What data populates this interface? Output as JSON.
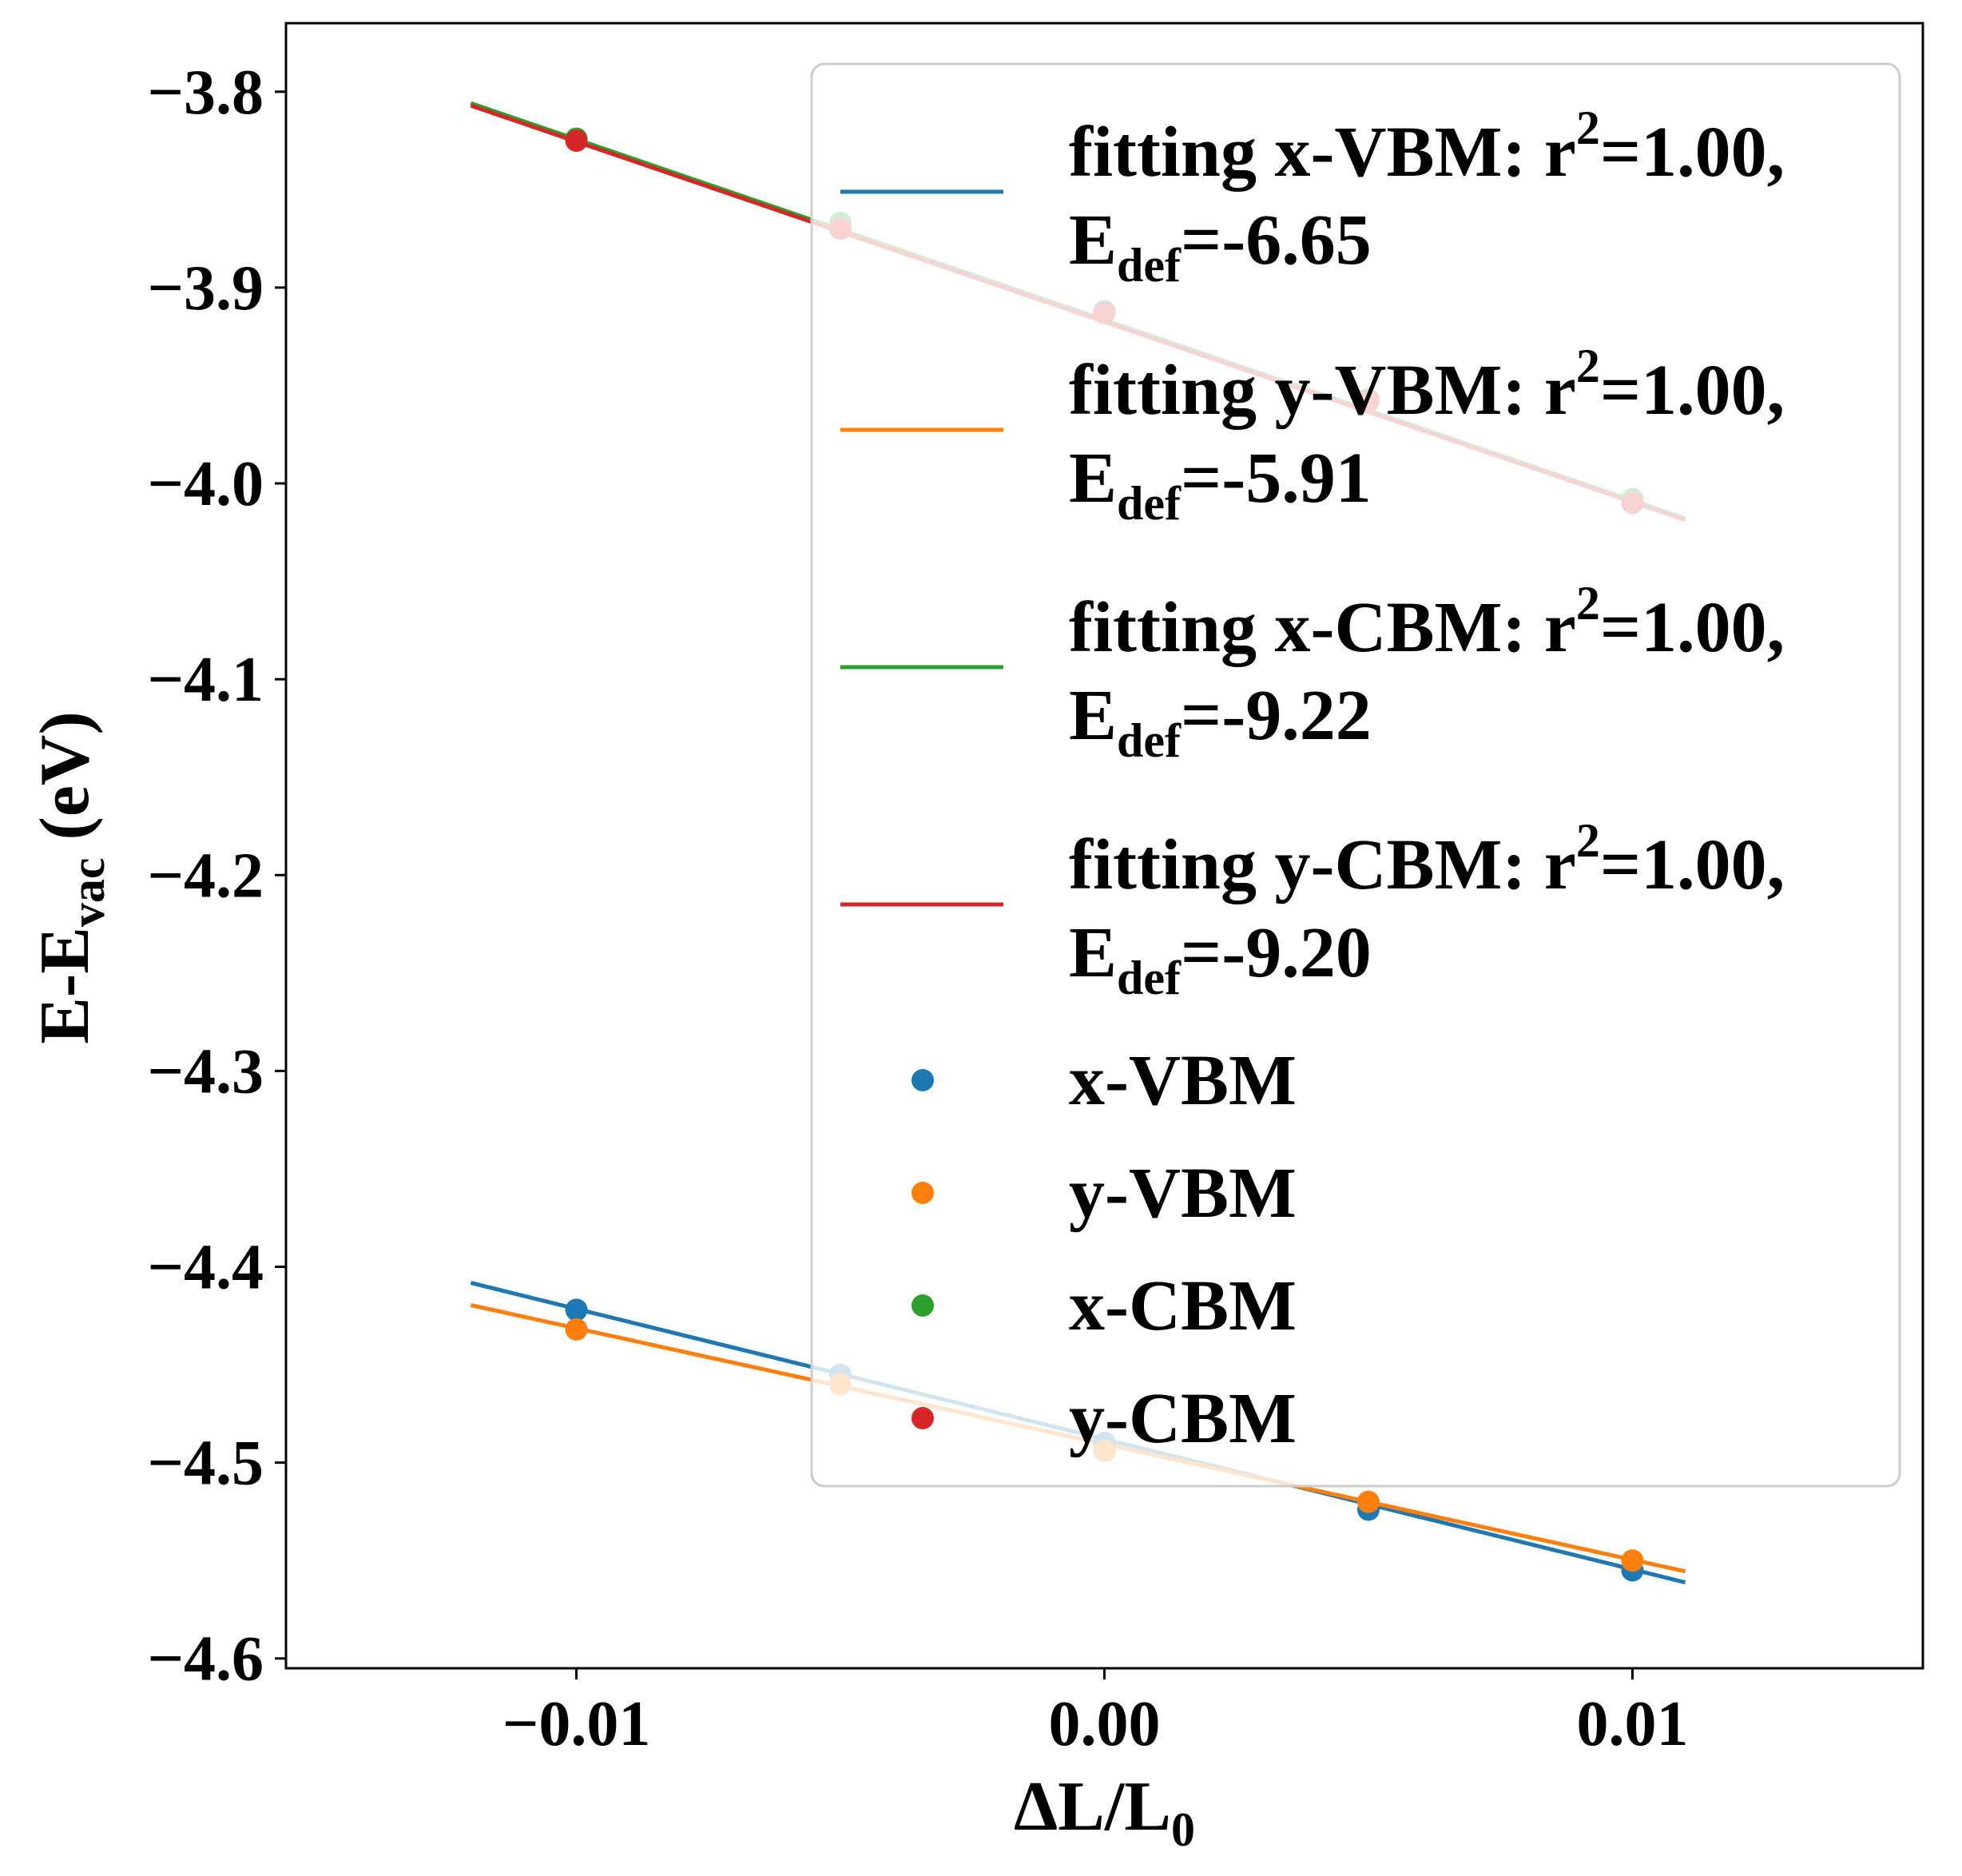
{
  "chart_data": {
    "type": "scatter",
    "xlabel": {
      "main": "ΔL/L",
      "sub": "0"
    },
    "ylabel": {
      "main": "E-E",
      "sub": "vac",
      "tail": " (eV)"
    },
    "xlim": [
      -0.0155,
      0.0155
    ],
    "ylim": [
      -4.605,
      -3.765
    ],
    "x_ticks": [
      -0.01,
      0.0,
      0.01
    ],
    "x_tick_labels": [
      "−0.01",
      "0.00",
      "0.01"
    ],
    "y_ticks": [
      -3.8,
      -3.9,
      -4.0,
      -4.1,
      -4.2,
      -4.3,
      -4.4,
      -4.5,
      -4.6
    ],
    "y_tick_labels": [
      "−3.8",
      "−3.9",
      "−4.0",
      "−4.1",
      "−4.2",
      "−4.3",
      "−4.4",
      "−4.5",
      "−4.6"
    ],
    "grid": false,
    "legend_position": "upper-right",
    "legend_alpha": 0.8,
    "fit_range": [
      -0.012,
      0.011
    ],
    "fits": [
      {
        "label_line1": "fitting x-VBM: r",
        "sup": "2",
        "label_tail": "=1.00,",
        "label_line2": "E",
        "sub": "def",
        "label_line2_tail": "=-6.65",
        "slope": -6.65,
        "intercept": -4.488,
        "color": "#1f77b4"
      },
      {
        "label_line1": "fitting y-VBM: r",
        "sup": "2",
        "label_tail": "=1.00,",
        "label_line2": "E",
        "sub": "def",
        "label_line2_tail": "=-5.91",
        "slope": -5.91,
        "intercept": -4.4905,
        "color": "#ff7f0e"
      },
      {
        "label_line1": "fitting x-CBM: r",
        "sup": "2",
        "label_tail": "=1.00,",
        "label_line2": "E",
        "sub": "def",
        "label_line2_tail": "=-9.22",
        "slope": -9.22,
        "intercept": -3.9165,
        "color": "#2ca02c"
      },
      {
        "label_line1": "fitting y-CBM: r",
        "sup": "2",
        "label_tail": "=1.00,",
        "label_line2": "E",
        "sub": "def",
        "label_line2_tail": "=-9.20",
        "slope": -9.2,
        "intercept": -3.9175,
        "color": "#d62728"
      }
    ],
    "series": [
      {
        "name": "x-VBM",
        "color": "#1f77b4",
        "x": [
          -0.01,
          -0.005,
          0.0,
          0.005,
          0.01
        ],
        "y": [
          -4.422,
          -4.455,
          -4.49,
          -4.524,
          -4.555
        ]
      },
      {
        "name": "y-VBM",
        "color": "#ff7f0e",
        "x": [
          -0.01,
          -0.005,
          0.0,
          0.005,
          0.01
        ],
        "y": [
          -4.432,
          -4.46,
          -4.494,
          -4.52,
          -4.55
        ]
      },
      {
        "name": "x-CBM",
        "color": "#2ca02c",
        "x": [
          -0.01,
          -0.005,
          0.0,
          0.005,
          0.01
        ],
        "y": [
          -3.824,
          -3.867,
          -3.912,
          -3.957,
          -4.008
        ]
      },
      {
        "name": "y-CBM",
        "color": "#d62728",
        "x": [
          -0.01,
          -0.005,
          0.0,
          0.005,
          0.01
        ],
        "y": [
          -3.825,
          -3.87,
          -3.913,
          -3.958,
          -4.01
        ]
      }
    ]
  }
}
